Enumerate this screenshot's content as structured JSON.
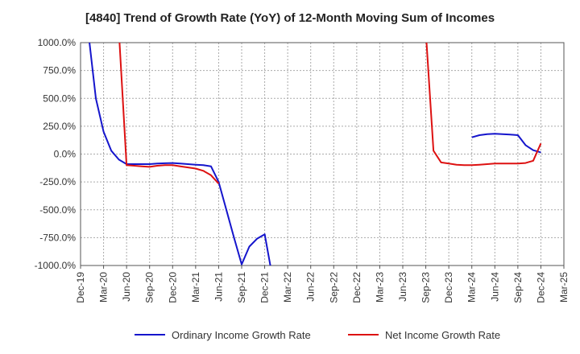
{
  "chart_data": {
    "type": "line",
    "title": "[4840]  Trend of Growth Rate (YoY) of 12-Month Moving Sum of Incomes",
    "xlabel": "",
    "ylabel": "",
    "ylim": [
      -1000,
      1000
    ],
    "y_ticks": [
      -1000,
      -750,
      -500,
      -250,
      0,
      250,
      500,
      750,
      1000
    ],
    "y_tick_labels": [
      "-1000.0%",
      "-750.0%",
      "-500.0%",
      "-250.0%",
      "0.0%",
      "250.0%",
      "500.0%",
      "750.0%",
      "1000.0%"
    ],
    "x_ticks": [
      "2019-12",
      "2020-03",
      "2020-06",
      "2020-09",
      "2020-12",
      "2021-03",
      "2021-06",
      "2021-09",
      "2021-12",
      "2022-03",
      "2022-06",
      "2022-09",
      "2022-12",
      "2023-03",
      "2023-06",
      "2023-09",
      "2023-12",
      "2024-03",
      "2024-06",
      "2024-09",
      "2024-12",
      "2025-03"
    ],
    "x_tick_labels": [
      "Dec-19",
      "Mar-20",
      "Jun-20",
      "Sep-20",
      "Dec-20",
      "Mar-21",
      "Jun-21",
      "Sep-21",
      "Dec-21",
      "Mar-22",
      "Jun-22",
      "Sep-22",
      "Dec-22",
      "Mar-23",
      "Jun-23",
      "Sep-23",
      "Dec-23",
      "Mar-24",
      "Jun-24",
      "Sep-24",
      "Dec-24",
      "Mar-25"
    ],
    "grid": true,
    "legend_position": "bottom",
    "series": [
      {
        "name": "Ordinary Income Growth Rate",
        "color": "#1515cc",
        "points": [
          [
            "2020-01",
            1100
          ],
          [
            "2020-02",
            500
          ],
          [
            "2020-03",
            200
          ],
          [
            "2020-04",
            30
          ],
          [
            "2020-05",
            -50
          ],
          [
            "2020-06",
            -90
          ],
          [
            "2020-07",
            -90
          ],
          [
            "2020-08",
            -90
          ],
          [
            "2020-09",
            -90
          ],
          [
            "2020-10",
            -85
          ],
          [
            "2020-11",
            -82
          ],
          [
            "2020-12",
            -80
          ],
          [
            "2021-01",
            -85
          ],
          [
            "2021-02",
            -90
          ],
          [
            "2021-03",
            -95
          ],
          [
            "2021-04",
            -100
          ],
          [
            "2021-05",
            -110
          ],
          [
            "2021-06",
            -250
          ],
          [
            "2021-07",
            -500
          ],
          [
            "2021-08",
            -750
          ],
          [
            "2021-09",
            -990
          ],
          [
            "2021-10",
            -830
          ],
          [
            "2021-11",
            -760
          ],
          [
            "2021-12",
            -720
          ],
          [
            "2022-01",
            -1100
          ]
        ]
      },
      {
        "name": "Ordinary Income Growth Rate",
        "color": "#1515cc",
        "points": [
          [
            "2024-03",
            150
          ],
          [
            "2024-04",
            170
          ],
          [
            "2024-05",
            178
          ],
          [
            "2024-06",
            182
          ],
          [
            "2024-07",
            178
          ],
          [
            "2024-08",
            175
          ],
          [
            "2024-09",
            170
          ],
          [
            "2024-10",
            80
          ],
          [
            "2024-11",
            35
          ],
          [
            "2024-12",
            15
          ]
        ]
      },
      {
        "name": "Net Income Growth Rate",
        "color": "#dd1111",
        "points": [
          [
            "2020-05",
            1100
          ],
          [
            "2020-06",
            -100
          ],
          [
            "2020-07",
            -105
          ],
          [
            "2020-08",
            -110
          ],
          [
            "2020-09",
            -115
          ],
          [
            "2020-10",
            -105
          ],
          [
            "2020-11",
            -100
          ],
          [
            "2020-12",
            -100
          ],
          [
            "2021-01",
            -110
          ],
          [
            "2021-02",
            -120
          ],
          [
            "2021-03",
            -130
          ],
          [
            "2021-04",
            -150
          ],
          [
            "2021-05",
            -190
          ],
          [
            "2021-06",
            -265
          ]
        ]
      },
      {
        "name": "Net Income Growth Rate",
        "color": "#dd1111",
        "points": [
          [
            "2023-09",
            1100
          ],
          [
            "2023-10",
            30
          ],
          [
            "2023-11",
            -75
          ],
          [
            "2023-12",
            -85
          ],
          [
            "2024-01",
            -95
          ],
          [
            "2024-02",
            -100
          ],
          [
            "2024-03",
            -100
          ],
          [
            "2024-04",
            -95
          ],
          [
            "2024-05",
            -90
          ],
          [
            "2024-06",
            -85
          ],
          [
            "2024-07",
            -85
          ],
          [
            "2024-08",
            -85
          ],
          [
            "2024-09",
            -85
          ],
          [
            "2024-10",
            -80
          ],
          [
            "2024-11",
            -60
          ],
          [
            "2024-12",
            95
          ]
        ]
      }
    ]
  },
  "legend": [
    {
      "label": "Ordinary Income Growth Rate",
      "color": "#1515cc"
    },
    {
      "label": "Net Income Growth Rate",
      "color": "#dd1111"
    }
  ]
}
